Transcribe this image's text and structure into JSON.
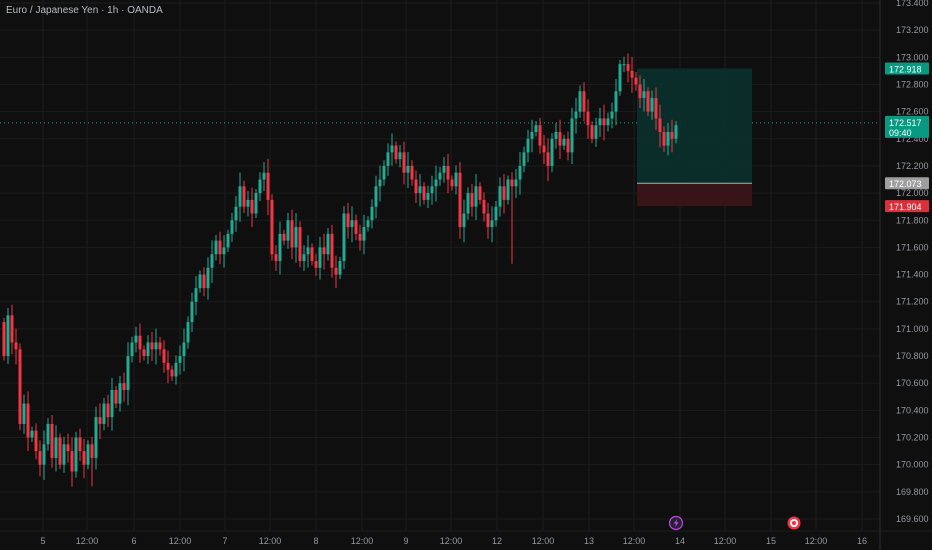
{
  "title": "Euro / Japanese Yen · 1h · OANDA",
  "colors": {
    "background": "#0f0f0f",
    "grid": "#1c1c1c",
    "up": "#22ab94",
    "down": "#f23645",
    "axis_text": "#9598a1",
    "target_zone": "#0b2f2b",
    "stop_zone": "#3a1518",
    "current_tag": "#089981",
    "target_tag": "#089981",
    "entry_tag": "#9e9e9e",
    "stop_tag": "#d9313c"
  },
  "chart_data": {
    "type": "candlestick",
    "symbol": "Euro / Japanese Yen",
    "interval": "1h",
    "source": "OANDA",
    "ylim": [
      169.55,
      173.45
    ],
    "y_ticks": [
      "169.600",
      "169.800",
      "170.000",
      "170.200",
      "170.400",
      "170.600",
      "170.800",
      "171.000",
      "171.200",
      "171.400",
      "171.600",
      "171.800",
      "172.000",
      "172.200",
      "172.400",
      "172.600",
      "172.800",
      "173.000",
      "173.200",
      "173.400"
    ],
    "x_ticks": [
      "5",
      "12:00",
      "6",
      "12:00",
      "7",
      "12:00",
      "8",
      "12:00",
      "9",
      "12:00",
      "12",
      "12:00",
      "13",
      "12:00",
      "14",
      "12:00",
      "15",
      "12:00",
      "16"
    ],
    "candle_path": [
      [
        0,
        171.05
      ],
      [
        4,
        170.8
      ],
      [
        8,
        171.1
      ],
      [
        12,
        170.9
      ],
      [
        16,
        170.85
      ],
      [
        20,
        170.3
      ],
      [
        24,
        170.45
      ],
      [
        28,
        170.2
      ],
      [
        32,
        170.25
      ],
      [
        36,
        170.1
      ],
      [
        40,
        170.0
      ],
      [
        44,
        170.15
      ],
      [
        48,
        170.3
      ],
      [
        52,
        170.05
      ],
      [
        56,
        170.2
      ],
      [
        60,
        170.0
      ],
      [
        64,
        170.15
      ],
      [
        68,
        170.1
      ],
      [
        72,
        169.95
      ],
      [
        76,
        170.2
      ],
      [
        80,
        170.1
      ],
      [
        84,
        170.0
      ],
      [
        88,
        170.15
      ],
      [
        92,
        170.05
      ],
      [
        96,
        170.35
      ],
      [
        100,
        170.3
      ],
      [
        104,
        170.45
      ],
      [
        108,
        170.35
      ],
      [
        112,
        170.55
      ],
      [
        116,
        170.45
      ],
      [
        120,
        170.6
      ],
      [
        124,
        170.55
      ],
      [
        128,
        170.8
      ],
      [
        132,
        170.9
      ],
      [
        136,
        170.95
      ],
      [
        140,
        170.85
      ],
      [
        144,
        170.8
      ],
      [
        148,
        170.9
      ],
      [
        152,
        170.85
      ],
      [
        156,
        170.9
      ],
      [
        160,
        170.85
      ],
      [
        164,
        170.75
      ],
      [
        168,
        170.7
      ],
      [
        172,
        170.65
      ],
      [
        176,
        170.75
      ],
      [
        180,
        170.8
      ],
      [
        184,
        170.9
      ],
      [
        188,
        171.05
      ],
      [
        192,
        171.2
      ],
      [
        196,
        171.3
      ],
      [
        200,
        171.4
      ],
      [
        204,
        171.3
      ],
      [
        208,
        171.45
      ],
      [
        212,
        171.55
      ],
      [
        216,
        171.65
      ],
      [
        220,
        171.55
      ],
      [
        224,
        171.6
      ],
      [
        228,
        171.7
      ],
      [
        232,
        171.8
      ],
      [
        236,
        171.9
      ],
      [
        240,
        172.05
      ],
      [
        244,
        171.9
      ],
      [
        248,
        171.95
      ],
      [
        252,
        171.85
      ],
      [
        256,
        172.0
      ],
      [
        260,
        172.1
      ],
      [
        264,
        172.15
      ],
      [
        268,
        171.95
      ],
      [
        272,
        171.55
      ],
      [
        276,
        171.5
      ],
      [
        280,
        171.7
      ],
      [
        284,
        171.65
      ],
      [
        288,
        171.8
      ],
      [
        292,
        171.6
      ],
      [
        296,
        171.75
      ],
      [
        300,
        171.5
      ],
      [
        304,
        171.55
      ],
      [
        308,
        171.6
      ],
      [
        312,
        171.5
      ],
      [
        316,
        171.45
      ],
      [
        320,
        171.6
      ],
      [
        324,
        171.55
      ],
      [
        328,
        171.7
      ],
      [
        332,
        171.45
      ],
      [
        336,
        171.4
      ],
      [
        340,
        171.5
      ],
      [
        344,
        171.85
      ],
      [
        348,
        171.75
      ],
      [
        352,
        171.8
      ],
      [
        356,
        171.7
      ],
      [
        360,
        171.65
      ],
      [
        364,
        171.75
      ],
      [
        368,
        171.8
      ],
      [
        372,
        171.9
      ],
      [
        376,
        172.05
      ],
      [
        380,
        172.1
      ],
      [
        384,
        172.2
      ],
      [
        388,
        172.3
      ],
      [
        392,
        172.35
      ],
      [
        396,
        172.25
      ],
      [
        400,
        172.3
      ],
      [
        404,
        172.15
      ],
      [
        408,
        172.2
      ],
      [
        412,
        172.1
      ],
      [
        416,
        172.0
      ],
      [
        420,
        172.05
      ],
      [
        424,
        171.95
      ],
      [
        428,
        172.0
      ],
      [
        432,
        172.05
      ],
      [
        436,
        172.1
      ],
      [
        440,
        172.15
      ],
      [
        444,
        172.2
      ],
      [
        448,
        172.1
      ],
      [
        452,
        172.05
      ],
      [
        456,
        172.15
      ],
      [
        460,
        171.75
      ],
      [
        464,
        171.85
      ],
      [
        468,
        172.0
      ],
      [
        472,
        171.9
      ],
      [
        476,
        172.05
      ],
      [
        480,
        171.95
      ],
      [
        484,
        171.85
      ],
      [
        488,
        171.75
      ],
      [
        492,
        171.8
      ],
      [
        496,
        171.9
      ],
      [
        500,
        172.05
      ],
      [
        504,
        171.95
      ],
      [
        508,
        172.1
      ],
      [
        512,
        172.05
      ],
      [
        516,
        172.1
      ],
      [
        520,
        172.2
      ],
      [
        524,
        172.3
      ],
      [
        528,
        172.4
      ],
      [
        532,
        172.45
      ],
      [
        536,
        172.5
      ],
      [
        540,
        172.35
      ],
      [
        544,
        172.3
      ],
      [
        548,
        172.2
      ],
      [
        552,
        172.4
      ],
      [
        556,
        172.45
      ],
      [
        560,
        172.35
      ],
      [
        564,
        172.4
      ],
      [
        568,
        172.3
      ],
      [
        572,
        172.55
      ],
      [
        576,
        172.6
      ],
      [
        580,
        172.75
      ],
      [
        584,
        172.6
      ],
      [
        588,
        172.5
      ],
      [
        592,
        172.4
      ],
      [
        596,
        172.5
      ],
      [
        600,
        172.55
      ],
      [
        604,
        172.5
      ],
      [
        608,
        172.55
      ],
      [
        612,
        172.6
      ],
      [
        616,
        172.75
      ],
      [
        620,
        172.95
      ],
      [
        624,
        172.95
      ],
      [
        628,
        172.9
      ],
      [
        632,
        172.85
      ],
      [
        636,
        172.8
      ],
      [
        640,
        172.7
      ],
      [
        644,
        172.75
      ],
      [
        648,
        172.6
      ],
      [
        652,
        172.7
      ],
      [
        656,
        172.55
      ],
      [
        660,
        172.45
      ],
      [
        664,
        172.35
      ],
      [
        668,
        172.45
      ],
      [
        672,
        172.4
      ],
      [
        676,
        172.5
      ]
    ],
    "current_price": "172.517",
    "countdown": "09:40",
    "position": {
      "type": "long",
      "target": "172.918",
      "entry": "172.073",
      "stop": "171.904"
    },
    "event_icons": [
      "lightning-icon",
      "economic-event-icon"
    ],
    "grid": true
  }
}
